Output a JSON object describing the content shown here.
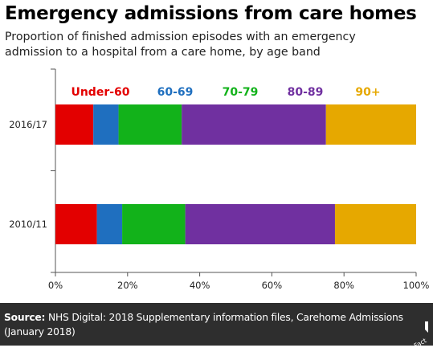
{
  "title": "Emergency admissions from care homes",
  "subtitle_line1": "Proportion of finished admission episodes with an emergency",
  "subtitle_line2": "admission to a hospital from a care home, by age band",
  "footer": {
    "source_label": "Source:",
    "source_text": " NHS Digital: 2018 Supplementary information files, Carehome Admissions (January 2018)",
    "logo_text": "Full Fact"
  },
  "chart_data": {
    "type": "bar",
    "orientation": "horizontal",
    "stacked": true,
    "categories": [
      "2016/17",
      "2010/11"
    ],
    "series": [
      {
        "name": "Under-60",
        "color": "#e30000",
        "values": [
          10.5,
          11.5
        ]
      },
      {
        "name": "60-69",
        "color": "#1f6fbf",
        "values": [
          7,
          7
        ]
      },
      {
        "name": "70-79",
        "color": "#12b21a",
        "values": [
          17.5,
          17.5
        ]
      },
      {
        "name": "80-89",
        "color": "#7030a0",
        "values": [
          40,
          41.5
        ]
      },
      {
        "name": "90+",
        "color": "#e6a800",
        "values": [
          25,
          22.5
        ]
      }
    ],
    "xlim": [
      0,
      100
    ],
    "xticks": [
      0,
      20,
      40,
      60,
      80,
      100
    ],
    "tick_suffix": "%",
    "legend_position": "top"
  }
}
